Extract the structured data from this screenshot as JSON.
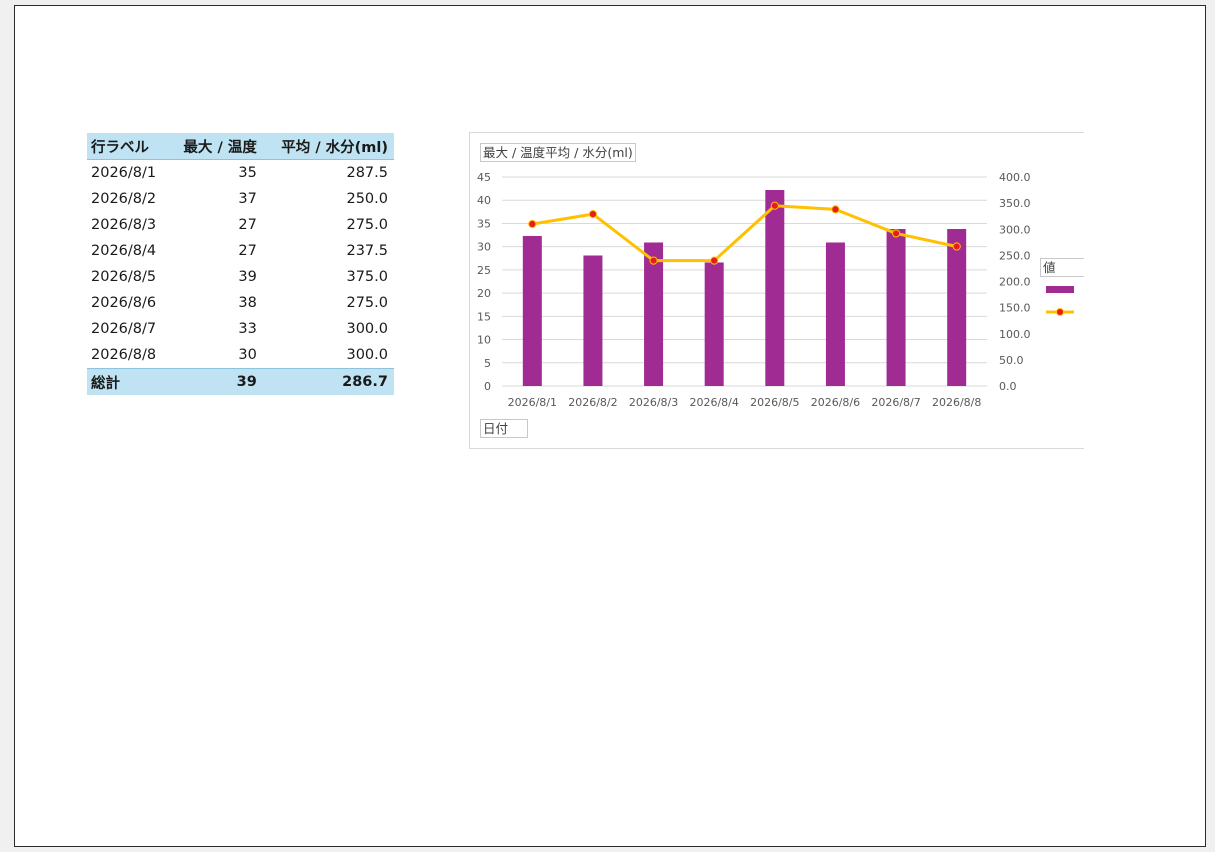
{
  "pivot": {
    "headers": [
      "行ラベル",
      "最大 / 温度",
      "平均 / 水分(ml)"
    ],
    "rows": [
      {
        "label": "2026/8/1",
        "temp": "35",
        "water": "287.5"
      },
      {
        "label": "2026/8/2",
        "temp": "37",
        "water": "250.0"
      },
      {
        "label": "2026/8/3",
        "temp": "27",
        "water": "275.0"
      },
      {
        "label": "2026/8/4",
        "temp": "27",
        "water": "237.5"
      },
      {
        "label": "2026/8/5",
        "temp": "39",
        "water": "375.0"
      },
      {
        "label": "2026/8/6",
        "temp": "38",
        "water": "275.0"
      },
      {
        "label": "2026/8/7",
        "temp": "33",
        "water": "300.0"
      },
      {
        "label": "2026/8/8",
        "temp": "30",
        "water": "300.0"
      }
    ],
    "total": {
      "label": "総計",
      "temp": "39",
      "water": "286.7"
    }
  },
  "chart_field_buttons": {
    "values": "最大 / 温度平均 / 水分(ml)",
    "axis": "日付",
    "legend_header": "値"
  },
  "chart_data": {
    "type": "bar",
    "categories": [
      "2026/8/1",
      "2026/8/2",
      "2026/8/3",
      "2026/8/4",
      "2026/8/5",
      "2026/8/6",
      "2026/8/7",
      "2026/8/8"
    ],
    "series": [
      {
        "kind": "bar",
        "axis": "primary",
        "color": "#a02b93",
        "values": [
          32.3,
          28.1,
          30.9,
          26.6,
          42.2,
          30.9,
          33.8,
          33.8
        ]
      },
      {
        "kind": "line",
        "axis": "secondary",
        "color": "#ffc000",
        "marker_color": "#e81c1c",
        "values": [
          310,
          329,
          240,
          240,
          345,
          338,
          292,
          267
        ]
      }
    ],
    "y_ticks": [
      "0",
      "5",
      "10",
      "15",
      "20",
      "25",
      "30",
      "35",
      "40",
      "45"
    ],
    "y2_ticks": [
      "0.0",
      "50.0",
      "100.0",
      "150.0",
      "200.0",
      "250.0",
      "300.0",
      "350.0",
      "400.0"
    ],
    "ylim": [
      0,
      45
    ],
    "y2lim": [
      0,
      400
    ],
    "grid": true,
    "legend_position": "right"
  }
}
